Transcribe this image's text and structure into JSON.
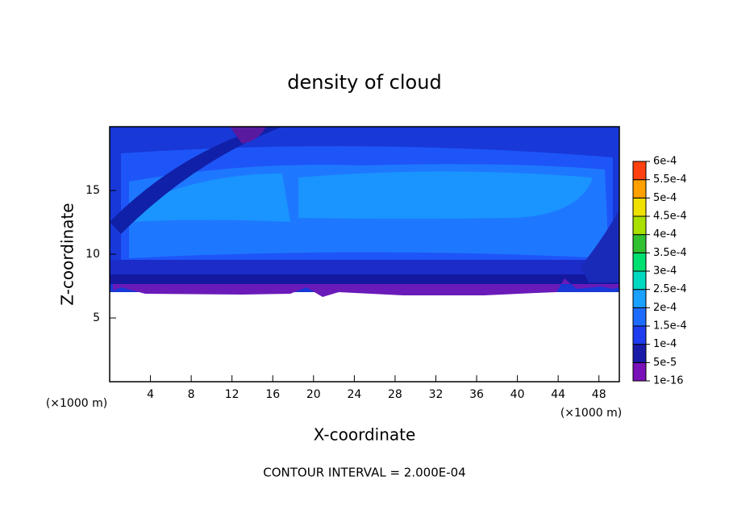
{
  "chart_data": {
    "type": "contour",
    "title": "density of cloud",
    "xlabel": "X-coordinate",
    "ylabel": "Z-coordinate",
    "y_unit": "(×1000 m)",
    "x_unit": "(×1000 m)",
    "annotation": "CONTOUR INTERVAL = 2.000E-04",
    "xlim": [
      0,
      50
    ],
    "ylim": [
      0,
      20
    ],
    "xticks": [
      4,
      8,
      12,
      16,
      20,
      24,
      28,
      32,
      36,
      40,
      44,
      48
    ],
    "yticks": [
      5,
      10,
      15
    ],
    "colorbar": {
      "levels": [
        {
          "value": 1e-16,
          "label": "1e-16"
        },
        {
          "value": 5e-05,
          "label": "5e-5"
        },
        {
          "value": 0.0001,
          "label": "1e-4"
        },
        {
          "value": 0.00015,
          "label": "1.5e-4"
        },
        {
          "value": 0.0002,
          "label": "2e-4"
        },
        {
          "value": 0.00025,
          "label": "2.5e-4"
        },
        {
          "value": 0.0003,
          "label": "3e-4"
        },
        {
          "value": 0.00035,
          "label": "3.5e-4"
        },
        {
          "value": 0.0004,
          "label": "4e-4"
        },
        {
          "value": 0.00045,
          "label": "4.5e-4"
        },
        {
          "value": 0.0005,
          "label": "5e-4"
        },
        {
          "value": 0.00055,
          "label": "5.5e-4"
        },
        {
          "value": 0.0006,
          "label": "6e-4"
        }
      ],
      "colors": [
        "#7a10b8",
        "#1a1aa8",
        "#1e3cf0",
        "#1e6cff",
        "#1aa0ff",
        "#00d8c0",
        "#00e070",
        "#30c030",
        "#a8e000",
        "#f0e000",
        "#ffa000",
        "#ff4010",
        "#f08888"
      ]
    }
  }
}
